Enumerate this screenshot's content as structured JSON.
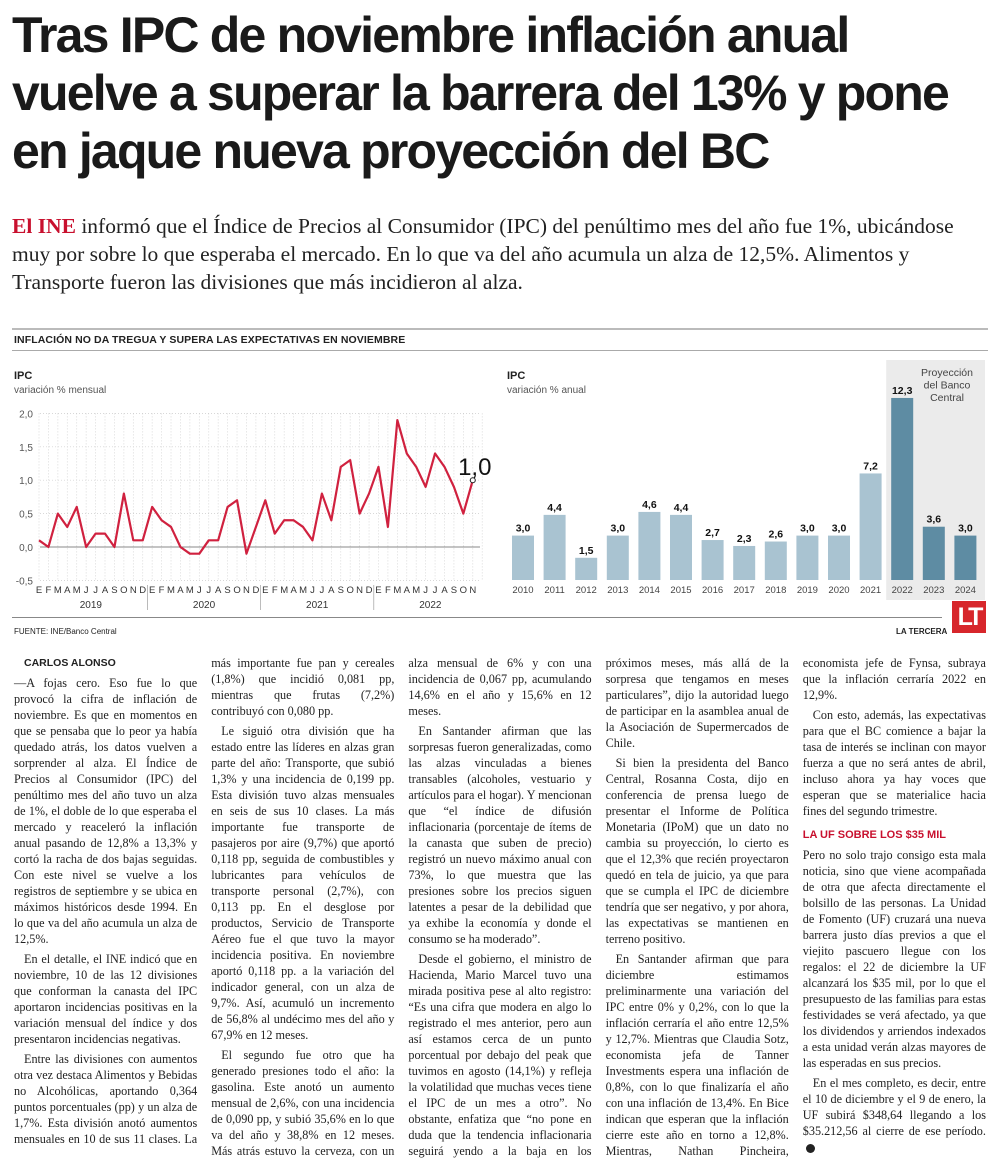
{
  "headline": "Tras IPC de noviembre inflación anual vuelve a superar la barrera del 13% y pone en jaque nueva proyección del BC",
  "lead": {
    "kicker": "El INE",
    "text": " informó que el Índice de Precios al Consumidor (IPC) del penúltimo mes del año fue 1%, ubicándose muy por sobre lo que esperaba el mercado. En lo que va del año acumula un alza de 12,5%. Alimentos y Transporte fueron las divisiones que más incidieron al alza."
  },
  "graphic": {
    "title": "INFLACIÓN NO DA TREGUA Y SUPERA LAS EXPECTATIVAS EN NOVIEMBRE",
    "source": "FUENTE: INE/Banco Central",
    "brand": "LA TERCERA",
    "logo": "LT"
  },
  "chart_data": [
    {
      "type": "line",
      "title": "IPC",
      "subtitle": "variación % mensual",
      "ylim": [
        -0.5,
        2.0
      ],
      "yticks": [
        "2,0",
        "1,5",
        "1,0",
        "0,5",
        "0,0",
        "-0,5"
      ],
      "ytick_values": [
        2.0,
        1.5,
        1.0,
        0.5,
        0.0,
        -0.5
      ],
      "month_labels": [
        "E",
        "F",
        "M",
        "A",
        "M",
        "J",
        "J",
        "A",
        "S",
        "O",
        "N",
        "D"
      ],
      "years": [
        "2019",
        "2020",
        "2021",
        "2022"
      ],
      "annotation": "1,0",
      "color": "#d0213f",
      "values": [
        0.1,
        0.0,
        0.5,
        0.3,
        0.6,
        0.0,
        0.2,
        0.2,
        0.0,
        0.8,
        0.1,
        0.1,
        0.6,
        0.4,
        0.3,
        0.0,
        -0.1,
        -0.1,
        0.1,
        0.1,
        0.6,
        0.7,
        -0.1,
        0.3,
        0.7,
        0.2,
        0.4,
        0.4,
        0.3,
        0.1,
        0.8,
        0.4,
        1.2,
        1.3,
        0.5,
        0.8,
        1.2,
        0.3,
        1.9,
        1.4,
        1.2,
        0.9,
        1.4,
        1.2,
        0.9,
        0.5,
        1.0
      ]
    },
    {
      "type": "bar",
      "title": "IPC",
      "subtitle": "variación % anual",
      "annotation": "Proyección del Banco Central",
      "categories": [
        "2010",
        "2011",
        "2012",
        "2013",
        "2014",
        "2015",
        "2016",
        "2017",
        "2018",
        "2019",
        "2020",
        "2021",
        "2022",
        "2023",
        "2024"
      ],
      "values": [
        3.0,
        4.4,
        1.5,
        3.0,
        4.6,
        4.4,
        2.7,
        2.3,
        2.6,
        3.0,
        3.0,
        7.2,
        12.3,
        3.6,
        3.0
      ],
      "labels": [
        "3,0",
        "4,4",
        "1,5",
        "3,0",
        "4,6",
        "4,4",
        "2,7",
        "2,3",
        "2,6",
        "3,0",
        "3,0",
        "7,2",
        "12,3",
        "3,6",
        "3,0"
      ],
      "projected_from": "2022",
      "colors": {
        "actual": "#a9c3d1",
        "projection": "#5e8ca3",
        "projection_bg": "#ebebeb"
      }
    }
  ],
  "article": {
    "byline": "CARLOS ALONSO",
    "paragraphs_a": [
      "—A fojas cero. Eso fue lo que provocó la cifra de inflación de noviembre. Es que en momentos en que se pensaba que lo peor ya había quedado atrás, los datos vuelven a sorprender al alza. El Índice de Precios al Consumidor (IPC) del penúltimo mes del año tuvo un alza de 1%, el doble de lo que esperaba el mercado y reaceleró la inflación anual pasando de 12,8% a 13,3% y cortó la racha de dos bajas seguidas. Con este nivel se vuelve a los registros de septiembre y se ubica en máximos históricos desde 1994. En lo que va del año acumula un alza de 12,5%.",
      "En el detalle, el INE indicó que en noviembre, 10 de las 12 divisiones que conforman la canasta del IPC aportaron incidencias positivas en la variación mensual del índice y dos presentaron incidencias negativas.",
      "Entre las divisiones con aumentos otra vez destaca Alimentos y Bebidas no Alcohólicas, aportando 0,364 puntos porcentuales (pp) y un alza de 1,7%. Esta división anotó aumentos mensuales en 10 de sus 11 clases. La más importante fue pan y cereales (1,8%) que incidió 0,081 pp, mientras que frutas (7,2%) contribuyó con 0,080 pp.",
      "Le siguió otra división que ha estado entre las líderes en alzas gran parte del año: Transporte, que subió 1,3% y una incidencia de 0,199 pp. Esta división tuvo alzas mensuales en seis de sus 10 clases. La más importante fue transporte de pasajeros por aire (9,7%) que aportó 0,118 pp, seguida de combustibles y lubricantes para vehículos de transporte personal (2,7%), con 0,113 pp. En el desglose por productos, Servicio de Transporte Aéreo fue el que tuvo la mayor incidencia positiva. En noviembre aportó 0,118 pp. a la variación del indicador general, con un alza de 9,7%. Así, acumuló un incremento de 56,8% al undécimo mes del año y 67,9% en 12 meses.",
      "El segundo fue otro que ha generado presiones todo el año: la gasolina. Este anotó un aumento mensual de 2,6%, con una incidencia de 0,090 pp, y subió 35,6% en lo que va del año y 38,8% en 12 meses. Más atrás estuvo la cerveza, con un alza mensual de 6% y con una incidencia de 0,067 pp, acumulando 14,6% en el año y 15,6% en 12 meses.",
      "En Santander afirman que las sorpresas fueron generalizadas, como las alzas vinculadas a bienes transables (alcoholes, vestuario y artículos para el hogar). Y mencionan que “el índice de difusión inflacionaria (porcentaje de ítems de la canasta que suben de precio) registró un nuevo máximo anual con 73%, lo que muestra que las presiones sobre los precios siguen latentes a pesar de la debilidad que ya exhibe la economía y donde el consumo se ha moderado”.",
      "Desde el gobierno, el ministro de Hacienda, Mario Marcel tuvo una mirada positiva pese al alto registro: “Es una cifra que modera en algo lo registrado el mes anterior, pero aun así estamos cerca de un punto porcentual por debajo del peak que tuvimos en agosto (14,1%) y refleja la volatilidad que muchas veces tiene el IPC de un mes a otro”. No obstante, enfatiza que “no pone en duda que la tendencia inflacionaria seguirá yendo a la baja en los próximos meses, más allá de la sorpresa que tengamos en meses particulares”, dijo la autoridad luego de participar en la asamblea anual de la Asociación de Supermercados de Chile.",
      "Si bien la presidenta del Banco Central, Rosanna Costa, dijo en conferencia de prensa luego de presentar el Informe de Política Monetaria (IPoM) que un dato no cambia su proyección, lo cierto es que el 12,3% que recién proyectaron quedó en tela de juicio, ya que para que se cumpla el IPC de diciembre tendría que ser negativo, y por ahora, las expectativas se mantienen en terreno positivo.",
      "En Santander afirman que para diciembre estimamos preliminarmente una variación del IPC entre 0% y 0,2%, con lo que la inflación cerraría el año entre 12,5% y 12,7%. Mientras que Claudia Sotz, economista jefa de Tanner Investments espera una inflación de 0,8%, con lo que finalizaría el año con una inflación de 13,4%. En Bice indican que esperan que la inflación cierre este año en torno a 12,8%. Mientras, Nathan Pincheira, economista jefe de Fynsa, subraya que la inflación cerraría 2022 en 12,9%.",
      "Con esto, además, las expectativas para que el BC comience a bajar la tasa de interés se inclinan con mayor fuerza a que no será antes de abril, incluso ahora ya hay voces que esperan que se materialice hacia fines del segundo trimestre."
    ],
    "subhead": "LA UF SOBRE LOS $35 MIL",
    "paragraphs_b": [
      "Pero no solo trajo consigo esta mala noticia, sino que viene acompañada de otra que afecta directamente el bolsillo de las personas. La Unidad de Fomento (UF) cruzará una nueva barrera justo días previos a que el viejito pascuero llegue con los regalos: el 22 de diciembre la UF alcanzará los $35 mil, por lo que el presupuesto de las familias para estas festividades se verá afectado, ya que los dividendos y arriendos indexados a esta unidad verán alzas mayores de las esperadas en sus precios.",
      "En el mes completo, es decir, entre el 10 de diciembre y el 9 de enero, la UF subirá $348,64 llegando a los $35.212,56 al cierre de ese período."
    ]
  }
}
